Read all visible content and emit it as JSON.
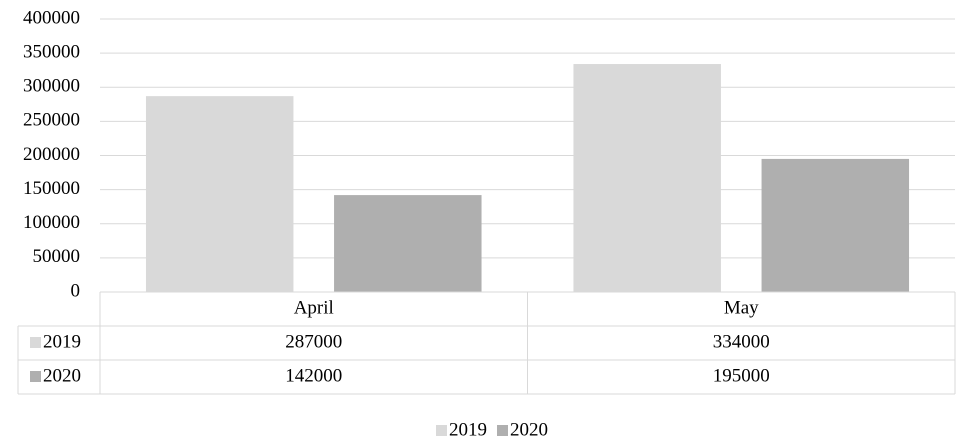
{
  "chart_data": {
    "type": "bar",
    "categories": [
      "April",
      "May"
    ],
    "series": [
      {
        "name": "2019",
        "color": "#d9d9d9",
        "values": [
          287000,
          334000
        ]
      },
      {
        "name": "2020",
        "color": "#afafaf",
        "values": [
          142000,
          195000
        ]
      }
    ],
    "ylim": [
      0,
      400000
    ],
    "yticks": [
      0,
      50000,
      100000,
      150000,
      200000,
      250000,
      300000,
      350000,
      400000
    ],
    "grid": true,
    "data_table": true,
    "legend": "bottom"
  }
}
